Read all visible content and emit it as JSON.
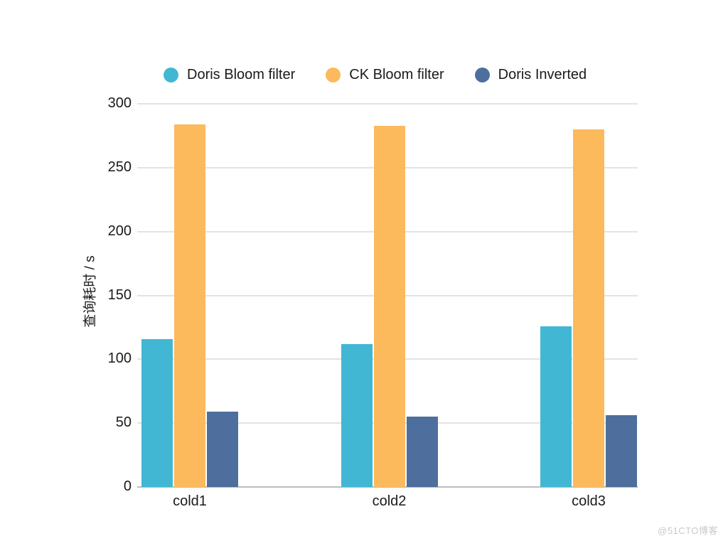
{
  "watermark": "@51CTO博客",
  "chart_data": {
    "type": "bar",
    "title": "",
    "categories": [
      "cold1",
      "cold2",
      "cold3"
    ],
    "series": [
      {
        "name": "Doris Bloom filter",
        "color": "#41b7d4",
        "values": [
          116,
          112,
          126
        ]
      },
      {
        "name": "CK Bloom filter",
        "color": "#fcba5c",
        "values": [
          284,
          283,
          280
        ]
      },
      {
        "name": "Doris Inverted",
        "color": "#4e6f9d",
        "values": [
          59,
          55,
          56
        ]
      }
    ],
    "xlabel": "",
    "ylabel": "查询耗时 / s",
    "ylim": [
      0,
      300
    ],
    "ytick_step": 50,
    "legend_position": "top",
    "grid": true,
    "background": "#ffffff",
    "gridline_color": "#e3e3e3",
    "axisline_color": "#bdbdbd",
    "text_color": "#1a1a1a",
    "watermark_color": "#c9c9c9"
  }
}
